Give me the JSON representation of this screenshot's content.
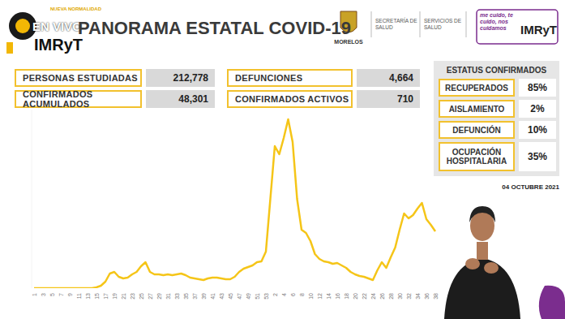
{
  "header": {
    "badge": "NUEVA NORMALIDAD",
    "live": "EN VIVO",
    "channel": "IMRyT",
    "title": "PANORAMA ESTATAL COVID-19",
    "state": "MORELOS",
    "logos": [
      "SECRETARÍA DE SALUD",
      "SERVICIOS DE SALUD"
    ],
    "campaign": "me cuido, te cuido, nos cuidamos",
    "campaign_brand": "IMRyT"
  },
  "stats": [
    {
      "label": "PERSONAS ESTUDIADAS",
      "value": "212,778"
    },
    {
      "label": "CONFIRMADOS ACUMULADOS",
      "value": "48,301"
    },
    {
      "label": "DEFUNCIONES",
      "value": "4,664"
    },
    {
      "label": "CONFIRMADOS ACTIVOS",
      "value": "710"
    }
  ],
  "status": {
    "title": "ESTATUS CONFIRMADOS",
    "rows": [
      {
        "label": "RECUPERADOS",
        "value": "85%"
      },
      {
        "label": "AISLAMIENTO",
        "value": "2%"
      },
      {
        "label": "DEFUNCIÓN",
        "value": "10%"
      },
      {
        "label": "OCUPACIÓN HOSPITALARIA",
        "value": "35%"
      }
    ]
  },
  "date": "04 OCTUBRE 2021",
  "chart_data": {
    "type": "line",
    "color": "#f5c518",
    "grid": false,
    "tick_labels": "x",
    "ylim": [
      0,
      2200
    ],
    "yticks": [],
    "categories": [
      "1",
      null,
      "3",
      null,
      "5",
      null,
      "7",
      null,
      "9",
      null,
      "11",
      null,
      "13",
      null,
      "15",
      null,
      "17",
      null,
      "19",
      null,
      "21",
      null,
      "23",
      null,
      "25",
      null,
      "27",
      null,
      "29",
      null,
      "31",
      null,
      "33",
      null,
      "35",
      null,
      "37",
      null,
      "39",
      null,
      "41",
      null,
      "43",
      null,
      "45",
      null,
      "47",
      null,
      "49",
      null,
      "51",
      null,
      "53",
      null,
      "2",
      null,
      "4",
      null,
      "6",
      null,
      "8",
      null,
      "10",
      null,
      "12",
      null,
      "14",
      null,
      "16",
      null,
      "18",
      null,
      "20",
      null,
      "22",
      null,
      "24",
      null,
      "26",
      null,
      "28",
      null,
      "30",
      null,
      "32",
      null,
      "34",
      null,
      "36",
      null,
      "38"
    ],
    "values": [
      0,
      0,
      0,
      0,
      0,
      0,
      0,
      0,
      0,
      0,
      0,
      0,
      0,
      0,
      10,
      30,
      80,
      180,
      200,
      140,
      120,
      130,
      170,
      200,
      270,
      320,
      200,
      170,
      170,
      160,
      170,
      160,
      170,
      180,
      160,
      130,
      120,
      110,
      100,
      120,
      130,
      130,
      120,
      110,
      110,
      140,
      200,
      240,
      260,
      280,
      320,
      330,
      450,
      1100,
      1750,
      1650,
      1850,
      2080,
      1800,
      1100,
      720,
      680,
      580,
      420,
      360,
      330,
      320,
      300,
      310,
      280,
      250,
      200,
      170,
      150,
      140,
      120,
      100,
      220,
      320,
      250,
      380,
      500,
      720,
      920,
      860,
      900,
      980,
      1050,
      850,
      780,
      700
    ]
  }
}
